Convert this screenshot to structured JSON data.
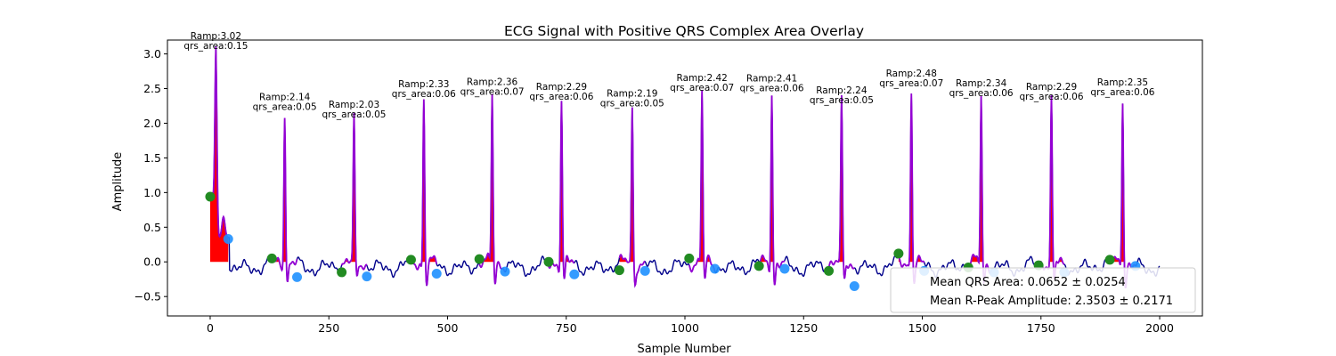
{
  "chart_data": {
    "type": "line",
    "title": "ECG Signal with Positive QRS Complex Area Overlay",
    "xlabel": "Sample Number",
    "ylabel": "Amplitude",
    "xlim": [
      -90,
      2090
    ],
    "ylim": [
      -0.78,
      3.2
    ],
    "xticks": [
      0,
      250,
      500,
      750,
      1000,
      1250,
      1500,
      1750,
      2000
    ],
    "yticks": [
      -0.5,
      0.0,
      0.5,
      1.0,
      1.5,
      2.0,
      2.5,
      3.0
    ],
    "ytick_labels": [
      "−0.5",
      "0.0",
      "0.5",
      "1.0",
      "1.5",
      "2.0",
      "2.5",
      "3.0"
    ],
    "colors": {
      "signal": "#00008b",
      "qrs_segment": "#9400d3",
      "qrs_area": "#ff0000",
      "onset": "#228b22",
      "offset": "#1e90ff"
    },
    "beats": [
      {
        "r": 12,
        "ramp": 3.02,
        "qrs_area": 0.15,
        "onset": [
          0,
          0.94
        ],
        "offset": [
          38,
          0.33
        ],
        "label_ramp": "Ramp:3.02",
        "label_area": "qrs_area:0.15"
      },
      {
        "r": 157,
        "ramp": 2.14,
        "qrs_area": 0.05,
        "onset": [
          130,
          0.05
        ],
        "offset": [
          183,
          -0.22
        ],
        "label_ramp": "Ramp:2.14",
        "label_area": "qrs_area:0.05"
      },
      {
        "r": 303,
        "ramp": 2.03,
        "qrs_area": 0.05,
        "onset": [
          277,
          -0.15
        ],
        "offset": [
          330,
          -0.21
        ],
        "label_ramp": "Ramp:2.03",
        "label_area": "qrs_area:0.05"
      },
      {
        "r": 450,
        "ramp": 2.33,
        "qrs_area": 0.06,
        "onset": [
          423,
          0.03
        ],
        "offset": [
          477,
          -0.17
        ],
        "label_ramp": "Ramp:2.33",
        "label_area": "qrs_area:0.06"
      },
      {
        "r": 594,
        "ramp": 2.36,
        "qrs_area": 0.07,
        "onset": [
          567,
          0.04
        ],
        "offset": [
          621,
          -0.14
        ],
        "label_ramp": "Ramp:2.36",
        "label_area": "qrs_area:0.07"
      },
      {
        "r": 740,
        "ramp": 2.29,
        "qrs_area": 0.06,
        "onset": [
          713,
          0.0
        ],
        "offset": [
          767,
          -0.18
        ],
        "label_ramp": "Ramp:2.29",
        "label_area": "qrs_area:0.06"
      },
      {
        "r": 889,
        "ramp": 2.19,
        "qrs_area": 0.05,
        "onset": [
          862,
          -0.12
        ],
        "offset": [
          916,
          -0.13
        ],
        "label_ramp": "Ramp:2.19",
        "label_area": "qrs_area:0.05"
      },
      {
        "r": 1036,
        "ramp": 2.42,
        "qrs_area": 0.07,
        "onset": [
          1009,
          0.05
        ],
        "offset": [
          1063,
          -0.1
        ],
        "label_ramp": "Ramp:2.42",
        "label_area": "qrs_area:0.07"
      },
      {
        "r": 1183,
        "ramp": 2.41,
        "qrs_area": 0.06,
        "onset": [
          1156,
          -0.06
        ],
        "offset": [
          1210,
          -0.1
        ],
        "label_ramp": "Ramp:2.41",
        "label_area": "qrs_area:0.06"
      },
      {
        "r": 1330,
        "ramp": 2.24,
        "qrs_area": 0.05,
        "onset": [
          1303,
          -0.13
        ],
        "offset": [
          1357,
          -0.35
        ],
        "label_ramp": "Ramp:2.24",
        "label_area": "qrs_area:0.05"
      },
      {
        "r": 1477,
        "ramp": 2.48,
        "qrs_area": 0.07,
        "onset": [
          1450,
          0.12
        ],
        "offset": [
          1504,
          -0.13
        ],
        "label_ramp": "Ramp:2.48",
        "label_area": "qrs_area:0.07"
      },
      {
        "r": 1624,
        "ramp": 2.34,
        "qrs_area": 0.06,
        "onset": [
          1597,
          -0.08
        ],
        "offset": [
          1651,
          -0.15
        ],
        "label_ramp": "Ramp:2.34",
        "label_area": "qrs_area:0.06"
      },
      {
        "r": 1772,
        "ramp": 2.29,
        "qrs_area": 0.06,
        "onset": [
          1745,
          -0.05
        ],
        "offset": [
          1799,
          -0.15
        ],
        "label_ramp": "Ramp:2.29",
        "label_area": "qrs_area:0.06"
      },
      {
        "r": 1922,
        "ramp": 2.35,
        "qrs_area": 0.06,
        "onset": [
          1895,
          0.03
        ],
        "offset": [
          1949,
          -0.06
        ],
        "label_ramp": "Ramp:2.35",
        "label_area": "qrs_area:0.06"
      }
    ],
    "legend": {
      "position": "lower-right",
      "entries": [
        "Mean QRS Area: 0.0652 ± 0.0254",
        "Mean R-Peak Amplitude: 2.3503 ± 0.2171"
      ]
    }
  }
}
